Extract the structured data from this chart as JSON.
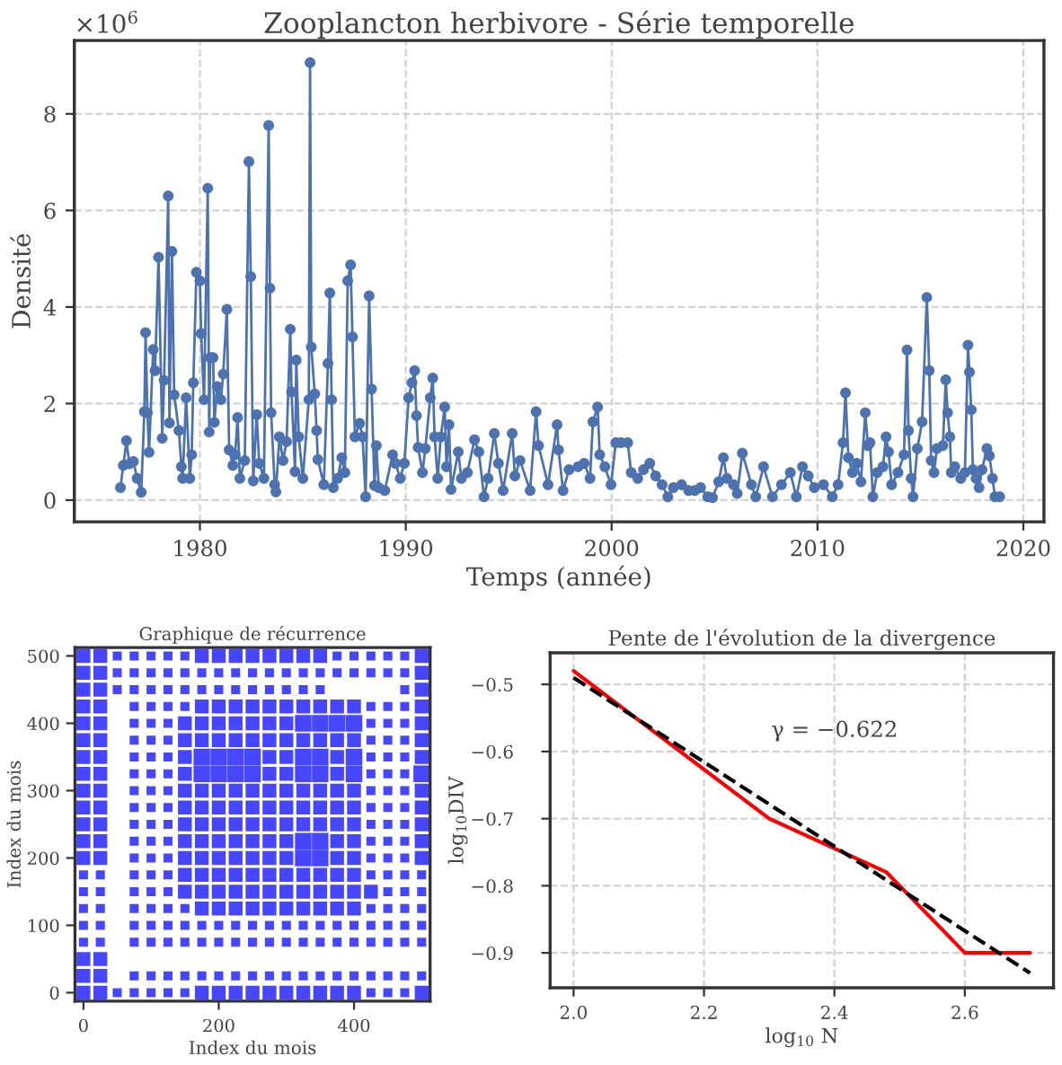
{
  "chart_data": [
    {
      "type": "line",
      "title": "Zooplancton herbivore - Série temporelle",
      "xlabel": "Temps (année)",
      "ylabel": "Densité",
      "annotations": [
        "×10$^{6}$"
      ],
      "x": [
        1976.14,
        1976.28,
        1976.43,
        1976.57,
        1976.77,
        1976.95,
        1977.15,
        1977.3,
        1977.36,
        1977.45,
        1977.53,
        1977.73,
        1977.82,
        1977.99,
        1978.17,
        1978.26,
        1978.46,
        1978.52,
        1978.64,
        1978.75,
        1978.98,
        1979.1,
        1979.16,
        1979.33,
        1979.51,
        1979.6,
        1979.68,
        1979.83,
        1980.0,
        1980.06,
        1980.2,
        1980.38,
        1980.45,
        1980.5,
        1980.64,
        1980.7,
        1980.84,
        1981.02,
        1981.13,
        1981.31,
        1981.42,
        1981.6,
        1981.71,
        1981.83,
        1981.94,
        1982.18,
        1982.38,
        1982.47,
        1982.59,
        1982.76,
        1982.88,
        1983.11,
        1983.34,
        1983.4,
        1983.46,
        1983.63,
        1983.69,
        1983.86,
        1984.04,
        1984.21,
        1984.39,
        1984.45,
        1984.62,
        1984.68,
        1984.8,
        1985.0,
        1985.29,
        1985.35,
        1985.41,
        1985.58,
        1985.67,
        1985.73,
        1986.02,
        1986.22,
        1986.31,
        1986.4,
        1986.48,
        1986.69,
        1986.89,
        1987.04,
        1987.18,
        1987.32,
        1987.41,
        1987.53,
        1987.76,
        1987.9,
        1988.05,
        1988.22,
        1988.34,
        1988.48,
        1988.57,
        1988.69,
        1988.98,
        1989.36,
        1989.5,
        1989.73,
        1989.93,
        1990.14,
        1990.3,
        1990.43,
        1990.52,
        1990.6,
        1990.81,
        1990.95,
        1991.19,
        1991.31,
        1991.4,
        1991.55,
        1991.7,
        1991.89,
        1991.98,
        1992.1,
        1992.2,
        1992.55,
        1992.7,
        1992.99,
        1993.34,
        1993.55,
        1993.8,
        1994.0,
        1994.3,
        1994.5,
        1994.73,
        1995.17,
        1995.3,
        1995.55,
        1996.04,
        1996.33,
        1996.45,
        1996.91,
        1997.35,
        1997.42,
        1997.64,
        1997.93,
        1998.37,
        1998.66,
        1998.95,
        1999.09,
        1999.32,
        1999.42,
        1999.67,
        1999.97,
        2000.2,
        2000.45,
        2000.78,
        2000.95,
        2001.27,
        2001.55,
        2001.85,
        2002.14,
        2002.45,
        2002.73,
        2003.0,
        2003.4,
        2003.74,
        2004.04,
        2004.32,
        2004.67,
        2004.9,
        2005.2,
        2005.43,
        2005.6,
        2005.92,
        2006.1,
        2006.35,
        2006.79,
        2007.0,
        2007.38,
        2007.81,
        2008.25,
        2008.68,
        2008.97,
        2009.27,
        2009.55,
        2009.85,
        2010.29,
        2010.72,
        2011.0,
        2011.24,
        2011.36,
        2011.5,
        2011.7,
        2011.9,
        2012.11,
        2012.32,
        2012.45,
        2012.55,
        2012.69,
        2012.9,
        2013.18,
        2013.33,
        2013.45,
        2013.6,
        2013.91,
        2014.2,
        2014.35,
        2014.42,
        2014.55,
        2014.64,
        2014.85,
        2015.08,
        2015.31,
        2015.43,
        2015.52,
        2015.66,
        2015.8,
        2016.09,
        2016.23,
        2016.32,
        2016.43,
        2016.5,
        2016.67,
        2016.96,
        2017.16,
        2017.31,
        2017.38,
        2017.47,
        2017.55,
        2017.7,
        2017.85,
        2017.99,
        2018.23,
        2018.35,
        2018.5,
        2018.62,
        2018.85
      ],
      "series": [
        {
          "color": "#4c72b0",
          "values": [
            0.26,
            0.72,
            1.23,
            0.75,
            0.8,
            0.45,
            0.16,
            1.83,
            3.47,
            1.81,
            0.99,
            3.12,
            2.68,
            5.03,
            1.28,
            2.48,
            6.3,
            1.6,
            5.15,
            2.18,
            1.44,
            0.69,
            0.45,
            2.12,
            0.45,
            0.94,
            2.43,
            4.72,
            4.54,
            3.45,
            2.08,
            6.46,
            1.41,
            2.95,
            2.95,
            1.61,
            2.35,
            2.08,
            2.61,
            3.95,
            1.04,
            0.72,
            0.94,
            1.71,
            0.45,
            0.82,
            7.01,
            4.63,
            0.4,
            1.77,
            0.76,
            0.45,
            7.76,
            4.39,
            1.81,
            0.32,
            0.17,
            1.31,
            0.82,
            1.21,
            3.54,
            2.24,
            0.59,
            2.9,
            1.31,
            0.45,
            2.08,
            9.06,
            3.17,
            2.2,
            1.44,
            0.84,
            0.32,
            2.83,
            4.29,
            2.08,
            0.26,
            0.45,
            0.88,
            0.57,
            4.54,
            4.87,
            3.38,
            1.31,
            1.59,
            1.31,
            0.07,
            4.23,
            2.3,
            0.3,
            1.13,
            0.26,
            0.2,
            0.94,
            0.76,
            0.45,
            0.76,
            2.12,
            2.43,
            2.68,
            1.75,
            1.09,
            0.57,
            1.07,
            2.12,
            2.53,
            1.31,
            0.45,
            1.31,
            1.93,
            0.69,
            1.56,
            0.22,
            1.0,
            0.45,
            0.57,
            1.25,
            1.0,
            0.07,
            0.45,
            1.38,
            0.76,
            0.2,
            1.38,
            0.5,
            0.82,
            0.2,
            1.83,
            1.13,
            0.32,
            1.56,
            1.04,
            0.2,
            0.63,
            0.69,
            0.76,
            0.45,
            1.62,
            1.93,
            0.94,
            0.69,
            0.32,
            1.19,
            1.19,
            1.19,
            0.57,
            0.45,
            0.63,
            0.76,
            0.5,
            0.32,
            0.07,
            0.26,
            0.32,
            0.2,
            0.2,
            0.26,
            0.07,
            0.05,
            0.38,
            0.88,
            0.45,
            0.32,
            0.14,
            0.97,
            0.32,
            0.07,
            0.69,
            0.07,
            0.32,
            0.57,
            0.07,
            0.69,
            0.5,
            0.26,
            0.32,
            0.07,
            0.32,
            1.19,
            2.22,
            0.88,
            0.57,
            0.76,
            0.38,
            1.81,
            1.13,
            1.19,
            0.07,
            0.57,
            0.69,
            1.31,
            1.0,
            0.32,
            0.57,
            0.94,
            3.11,
            1.44,
            0.45,
            0.07,
            1.07,
            1.62,
            4.2,
            2.68,
            0.82,
            0.57,
            1.07,
            1.13,
            2.49,
            1.81,
            1.31,
            0.57,
            0.69,
            0.45,
            0.57,
            3.21,
            2.65,
            1.87,
            0.63,
            0.45,
            0.26,
            0.63,
            1.07,
            0.92,
            0.45,
            0.07,
            0.07
          ]
        }
      ],
      "marker": "circle",
      "xlim": [
        1973.9,
        2021.0
      ],
      "ylim": [
        -0.45,
        9.52
      ],
      "xticks": [
        1980,
        1990,
        2000,
        2010,
        2020
      ],
      "yticks": [
        0,
        2,
        4,
        6,
        8
      ],
      "grid": true
    },
    {
      "type": "bubble",
      "title": "Graphique de récurrence",
      "xlabel": "Index du mois",
      "ylabel": "Index du mois",
      "marker": "square",
      "series": [
        {
          "color": "#4646ff",
          "x": [
            0,
            25,
            50,
            75,
            100,
            125,
            150,
            175,
            200,
            225,
            250,
            275,
            300,
            325,
            350,
            375,
            400,
            425,
            450,
            475,
            500,
            0,
            25,
            75,
            100,
            125,
            150,
            175,
            200,
            225,
            250,
            275,
            300,
            325,
            350,
            375,
            400,
            425,
            450,
            475,
            500,
            0,
            25,
            0,
            25,
            75,
            100,
            125,
            150,
            175,
            200,
            225,
            250,
            275,
            300,
            325,
            350,
            375,
            400,
            425,
            450,
            475,
            500,
            0,
            25,
            75,
            100,
            125,
            150,
            175,
            200,
            225,
            250,
            275,
            300,
            325,
            350,
            375,
            400,
            425,
            450,
            475,
            500,
            0,
            25,
            75,
            100,
            125,
            150,
            175,
            200,
            225,
            250,
            275,
            300,
            325,
            350,
            375,
            400,
            425,
            450,
            475,
            500,
            0,
            25,
            75,
            100,
            125,
            150,
            175,
            200,
            225,
            250,
            275,
            300,
            325,
            350,
            375,
            400,
            425,
            450,
            475,
            500,
            0,
            25,
            75,
            100,
            125,
            150,
            175,
            200,
            225,
            250,
            275,
            300,
            325,
            350,
            375,
            400,
            425,
            450,
            475,
            500,
            0,
            25,
            75,
            100,
            125,
            150,
            175,
            200,
            225,
            250,
            275,
            300,
            325,
            350,
            375,
            400,
            425,
            450,
            475,
            500,
            0,
            25,
            75,
            100,
            125,
            150,
            175,
            200,
            225,
            250,
            275,
            300,
            325,
            350,
            375,
            400,
            425,
            450,
            475,
            500,
            0,
            25,
            75,
            100,
            125,
            150,
            175,
            200,
            225,
            250,
            275,
            300,
            325,
            350,
            375,
            400,
            425,
            450,
            475,
            500,
            0,
            25,
            75,
            100,
            125,
            150,
            175,
            200,
            225,
            250,
            275,
            300,
            325,
            350,
            375,
            400,
            425,
            450,
            475,
            500,
            0,
            25,
            75,
            100,
            125,
            150,
            175,
            200,
            225,
            250,
            275,
            300,
            325,
            350,
            375,
            400,
            425,
            450,
            475,
            500,
            0,
            25,
            75,
            100,
            125,
            150,
            175,
            200,
            225,
            250,
            275,
            300,
            325,
            350,
            375,
            400,
            425,
            450,
            475,
            500,
            0,
            25,
            75,
            100,
            125,
            150,
            175,
            200,
            225,
            250,
            275,
            300,
            325,
            350,
            375,
            400,
            425,
            450,
            475,
            500,
            0,
            25,
            75,
            100,
            125,
            150,
            175,
            200,
            225,
            250,
            275,
            300,
            325,
            350,
            375,
            400,
            425,
            450,
            475,
            500,
            0,
            25,
            75,
            100,
            125,
            150,
            175,
            200,
            225,
            250,
            275,
            300,
            325,
            350,
            375,
            400,
            425,
            450,
            475,
            500,
            0,
            25,
            75,
            100,
            125,
            150,
            175,
            200,
            225,
            250,
            275,
            300,
            325,
            350,
            375,
            400,
            425,
            450,
            475,
            500,
            0,
            25,
            50,
            75,
            100,
            125,
            150,
            175,
            200,
            225,
            250,
            275,
            300,
            325,
            350,
            475,
            500,
            0,
            25,
            50,
            75,
            100,
            125,
            150,
            175,
            200,
            225,
            250,
            275,
            300,
            325,
            350,
            375,
            400,
            425,
            450,
            475,
            500,
            0,
            25,
            50,
            75,
            100,
            125,
            150,
            175,
            200,
            225,
            250,
            275,
            300,
            325,
            350,
            375,
            400,
            425,
            450,
            475,
            500
          ],
          "values": [
            0,
            0,
            0,
            0,
            0,
            0,
            0,
            0,
            0,
            0,
            0,
            0,
            0,
            0,
            0,
            0,
            0,
            0,
            0,
            0,
            0,
            25,
            25,
            25,
            25,
            25,
            25,
            25,
            25,
            25,
            25,
            25,
            25,
            25,
            25,
            25,
            25,
            25,
            25,
            25,
            25,
            50,
            50,
            75,
            75,
            75,
            75,
            75,
            75,
            75,
            75,
            75,
            75,
            75,
            75,
            75,
            75,
            75,
            75,
            75,
            75,
            75,
            75,
            100,
            100,
            100,
            100,
            100,
            100,
            100,
            100,
            100,
            100,
            100,
            100,
            100,
            100,
            100,
            100,
            100,
            100,
            100,
            100,
            125,
            125,
            125,
            125,
            125,
            125,
            125,
            125,
            125,
            125,
            125,
            125,
            125,
            125,
            125,
            125,
            125,
            125,
            125,
            125,
            150,
            150,
            150,
            150,
            150,
            150,
            150,
            150,
            150,
            150,
            150,
            150,
            150,
            150,
            150,
            150,
            150,
            150,
            150,
            150,
            175,
            175,
            175,
            175,
            175,
            175,
            175,
            175,
            175,
            175,
            175,
            175,
            175,
            175,
            175,
            175,
            175,
            175,
            175,
            175,
            200,
            200,
            200,
            200,
            200,
            200,
            200,
            200,
            200,
            200,
            200,
            200,
            200,
            200,
            200,
            200,
            200,
            200,
            200,
            200,
            225,
            225,
            225,
            225,
            225,
            225,
            225,
            225,
            225,
            225,
            225,
            225,
            225,
            225,
            225,
            225,
            225,
            225,
            225,
            225,
            250,
            250,
            250,
            250,
            250,
            250,
            250,
            250,
            250,
            250,
            250,
            250,
            250,
            250,
            250,
            250,
            250,
            250,
            250,
            250,
            275,
            275,
            275,
            275,
            275,
            275,
            275,
            275,
            275,
            275,
            275,
            275,
            275,
            275,
            275,
            275,
            275,
            275,
            275,
            275,
            300,
            300,
            300,
            300,
            300,
            300,
            300,
            300,
            300,
            300,
            300,
            300,
            300,
            300,
            300,
            300,
            300,
            300,
            300,
            300,
            325,
            325,
            325,
            325,
            325,
            325,
            325,
            325,
            325,
            325,
            325,
            325,
            325,
            325,
            325,
            325,
            325,
            325,
            325,
            325,
            350,
            350,
            350,
            350,
            350,
            350,
            350,
            350,
            350,
            350,
            350,
            350,
            350,
            350,
            350,
            350,
            350,
            350,
            350,
            350,
            375,
            375,
            375,
            375,
            375,
            375,
            375,
            375,
            375,
            375,
            375,
            375,
            375,
            375,
            375,
            375,
            375,
            375,
            375,
            375,
            400,
            400,
            400,
            400,
            400,
            400,
            400,
            400,
            400,
            400,
            400,
            400,
            400,
            400,
            400,
            400,
            400,
            400,
            400,
            400,
            425,
            425,
            425,
            425,
            425,
            425,
            425,
            425,
            425,
            425,
            425,
            425,
            425,
            425,
            425,
            425,
            425,
            425,
            425,
            425,
            450,
            450,
            450,
            450,
            450,
            450,
            450,
            450,
            450,
            450,
            450,
            450,
            450,
            450,
            450,
            450,
            450,
            475,
            475,
            475,
            475,
            475,
            475,
            475,
            475,
            475,
            475,
            475,
            475,
            475,
            475,
            475,
            475,
            475,
            475,
            475,
            475,
            475,
            500,
            500,
            500,
            500,
            500,
            500,
            500,
            500,
            500,
            500,
            500,
            500,
            500,
            500,
            500,
            500,
            500,
            500,
            500,
            500,
            500
          ],
          "sizes": [
            0.7,
            0.7,
            0.3,
            0.3,
            0.3,
            0.3,
            0.3,
            0.7,
            0.7,
            0.7,
            0.7,
            0.7,
            0.7,
            0.7,
            0.7,
            0.7,
            0.7,
            0.3,
            0.3,
            0.3,
            0.7,
            0.7,
            0.7,
            0.3,
            0.3,
            0.3,
            0.3,
            0.3,
            0.3,
            0.3,
            0.3,
            0.3,
            0.3,
            0.3,
            0.3,
            0.3,
            0.3,
            0.3,
            0.3,
            0.3,
            0.3,
            0.7,
            0.7,
            0.3,
            0.3,
            0.3,
            0.3,
            0.3,
            0.3,
            0.3,
            0.3,
            0.3,
            0.3,
            0.3,
            0.3,
            0.3,
            0.3,
            0.3,
            0.3,
            0.3,
            0.3,
            0.3,
            0.3,
            0.3,
            0.3,
            0.3,
            0.3,
            0.3,
            0.3,
            0.3,
            0.3,
            0.3,
            0.3,
            0.3,
            0.3,
            0.3,
            0.3,
            0.3,
            0.3,
            0.3,
            0.3,
            0.3,
            0.3,
            0.3,
            0.3,
            0.3,
            0.3,
            0.3,
            0.3,
            0.7,
            0.7,
            0.7,
            0.7,
            0.7,
            0.7,
            0.7,
            0.7,
            0.7,
            0.7,
            0.3,
            0.3,
            0.3,
            0.3,
            0.3,
            0.3,
            0.3,
            0.3,
            0.3,
            0.7,
            0.7,
            0.7,
            0.7,
            0.7,
            0.7,
            0.7,
            0.7,
            0.7,
            0.7,
            0.7,
            0.7,
            0.3,
            0.3,
            0.3,
            0.3,
            0.3,
            0.3,
            0.3,
            0.3,
            0.7,
            0.7,
            0.7,
            0.7,
            0.7,
            0.7,
            0.7,
            0.7,
            0.7,
            0.7,
            0.7,
            0.3,
            0.3,
            0.3,
            0.3,
            0.7,
            0.7,
            0.3,
            0.3,
            0.3,
            0.7,
            0.7,
            0.7,
            0.7,
            0.7,
            0.7,
            0.7,
            1,
            1,
            0.7,
            0.7,
            0.3,
            0.3,
            0.3,
            0.7,
            0.7,
            0.7,
            0.3,
            0.3,
            0.3,
            0.7,
            0.7,
            0.7,
            0.7,
            0.7,
            0.7,
            0.7,
            1,
            1,
            0.7,
            0.7,
            0.3,
            0.3,
            0.3,
            0.7,
            0.7,
            0.7,
            0.3,
            0.3,
            0.3,
            0.7,
            0.7,
            0.7,
            0.7,
            0.7,
            0.7,
            0.7,
            0.7,
            0.7,
            0.7,
            0.7,
            0.3,
            0.3,
            0.3,
            0.7,
            0.7,
            0.7,
            0.3,
            0.3,
            0.3,
            0.7,
            0.7,
            0.7,
            0.7,
            0.7,
            0.7,
            0.7,
            0.7,
            0.7,
            0.7,
            0.7,
            0.3,
            0.3,
            0.3,
            0.7,
            0.7,
            0.7,
            0.3,
            0.3,
            0.3,
            0.7,
            0.7,
            0.7,
            0.7,
            0.7,
            0.7,
            0.7,
            0.7,
            0.7,
            0.7,
            0.7,
            0.3,
            0.3,
            0.3,
            0.7,
            0.7,
            0.7,
            0.3,
            0.3,
            0.3,
            0.7,
            1,
            1,
            1,
            1,
            0.7,
            0.7,
            1,
            1,
            0.7,
            1,
            0.3,
            0.3,
            0.3,
            1,
            0.7,
            0.7,
            0.3,
            0.3,
            0.3,
            0.7,
            1,
            1,
            1,
            1,
            0.7,
            0.7,
            1,
            1,
            0.7,
            1,
            0.3,
            0.3,
            0.3,
            0.7,
            0.7,
            0.7,
            0.3,
            0.3,
            0.3,
            0.7,
            0.7,
            0.7,
            0.7,
            0.7,
            0.7,
            0.7,
            0.7,
            0.7,
            0.7,
            0.7,
            0.3,
            0.3,
            0.3,
            0.7,
            0.7,
            0.7,
            0.3,
            0.3,
            0.3,
            0.7,
            0.7,
            0.7,
            0.7,
            0.7,
            0.7,
            0.7,
            1,
            1,
            1,
            1,
            0.3,
            0.3,
            0.3,
            0.7,
            0.7,
            0.7,
            0.3,
            0.3,
            0.3,
            0.3,
            0.7,
            0.7,
            0.7,
            0.7,
            0.7,
            0.7,
            0.7,
            0.7,
            0.7,
            0.7,
            0.3,
            0.3,
            0.3,
            0.7,
            0.7,
            0.7,
            0.3,
            0.3,
            0.3,
            0.3,
            0.3,
            0.3,
            0.3,
            0.3,
            0.3,
            0.3,
            0.3,
            0.3,
            0.3,
            0.3,
            0.7,
            0.7,
            0.7,
            0.3,
            0.3,
            0.3,
            0.3,
            0.3,
            0.3,
            0.3,
            0.3,
            0.3,
            0.3,
            0.3,
            0.3,
            0.3,
            0.3,
            0.3,
            0.3,
            0.3,
            0.3,
            0.7,
            0.7,
            0.7,
            0.3,
            0.3,
            0.3,
            0.3,
            0.3,
            0.7,
            0.7,
            0.7,
            0.7,
            0.7,
            0.7,
            0.7,
            0.7,
            0.3,
            0.3,
            0.3,
            0.3,
            0.3,
            0.7
          ]
        }
      ],
      "xlim": [
        -12.5,
        512.5
      ],
      "ylim": [
        -12.5,
        512.5
      ],
      "xticks": [
        0,
        200,
        400
      ],
      "yticks": [
        0,
        100,
        200,
        300,
        400,
        500
      ]
    },
    {
      "type": "line",
      "title": "Pente de l'évolution de la divergence",
      "xlabel": "log$_{10}$ N",
      "ylabel": "log$_{10}$DIV",
      "annotations": [
        "γ = −0.622"
      ],
      "series": [
        {
          "color": "#ff0000",
          "x": [
            2.0,
            2.3,
            2.48,
            2.6,
            2.7
          ],
          "values": [
            -0.48,
            -0.7,
            -0.78,
            -0.9,
            -0.9
          ]
        },
        {
          "color": "#000000",
          "line_style": "dashed",
          "x": [
            2.0,
            2.7
          ],
          "values": [
            -0.49,
            -0.93
          ]
        }
      ],
      "xlim": [
        1.964,
        2.736
      ],
      "ylim": [
        -0.952,
        -0.453
      ],
      "xticks": [
        {
          "value": 2,
          "label": "2.0"
        },
        2.2,
        2.4,
        2.6
      ],
      "yticks": [
        -0.5,
        -0.6,
        -0.7,
        -0.8,
        -0.9
      ],
      "grid": true
    }
  ]
}
